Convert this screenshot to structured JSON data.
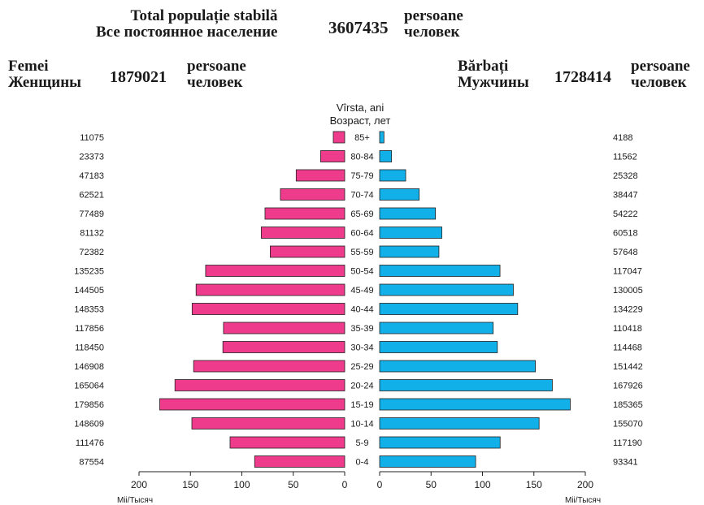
{
  "header": {
    "total_label_ro": "Total populație stabilă",
    "total_label_ru": "Все постоянное население",
    "total_value": "3607435",
    "total_unit_ro": "persoane",
    "total_unit_ru": "человек",
    "female_label_ro": "Femei",
    "female_label_ru": "Женщины",
    "female_value": "1879021",
    "female_unit_ro": "persoane",
    "female_unit_ru": "человек",
    "male_label_ro": "Bărbați",
    "male_label_ru": "Мужчины",
    "male_value": "1728414",
    "male_unit_ro": "persoane",
    "male_unit_ru": "человек"
  },
  "chart_data": {
    "type": "bar",
    "orientation": "horizontal-pyramid",
    "axis_title_ro": "Vîrsta, ani",
    "axis_title_ru": "Возраст, лет",
    "x_unit_left": "Mii/Тысяч",
    "x_unit_right": "Mii/Тысяч",
    "xlim": [
      0,
      200
    ],
    "x_ticks": [
      0,
      50,
      100,
      150,
      200
    ],
    "categories": [
      "85+",
      "80-84",
      "75-79",
      "70-74",
      "65-69",
      "60-64",
      "55-59",
      "50-54",
      "45-49",
      "40-44",
      "35-39",
      "30-34",
      "25-29",
      "20-24",
      "15-19",
      "10-14",
      "5-9",
      "0-4"
    ],
    "series": [
      {
        "side": "left",
        "color": "#ee3b8b",
        "values": [
          11075,
          23373,
          47183,
          62521,
          77489,
          81132,
          72382,
          135235,
          144505,
          148353,
          117856,
          118450,
          146908,
          165064,
          179856,
          148609,
          111476,
          87554
        ]
      },
      {
        "side": "right",
        "color": "#12b0e8",
        "values": [
          4188,
          11562,
          25328,
          38447,
          54222,
          60518,
          57648,
          117047,
          130005,
          134229,
          110418,
          114468,
          151442,
          167926,
          185365,
          155070,
          117190,
          93341
        ]
      }
    ],
    "grid": false
  }
}
